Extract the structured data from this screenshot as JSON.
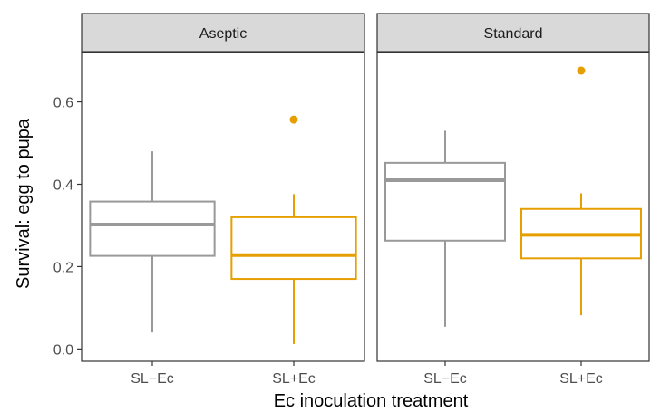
{
  "chart_data": {
    "type": "boxplot",
    "facet_label": [],
    "xlabel": "Ec inoculation treatment",
    "ylabel": "Survival: egg to pupa",
    "ylim": [
      -0.03,
      0.72
    ],
    "yticks": [
      0.0,
      0.2,
      0.4,
      0.6
    ],
    "ytick_labels": [
      "0.0",
      "0.2",
      "0.4",
      "0.6"
    ],
    "categories": [
      "SL−Ec",
      "SL+Ec"
    ],
    "category_colors": [
      "#999999",
      "#E69F00"
    ],
    "panels": [
      {
        "title": "Aseptic",
        "boxes": [
          {
            "category": "SL−Ec",
            "min": 0.04,
            "q1": 0.226,
            "median": 0.302,
            "q3": 0.358,
            "max": 0.48,
            "outliers": []
          },
          {
            "category": "SL+Ec",
            "min": 0.012,
            "q1": 0.17,
            "median": 0.228,
            "q3": 0.32,
            "max": 0.376,
            "outliers": [
              0.557
            ]
          }
        ]
      },
      {
        "title": "Standard",
        "boxes": [
          {
            "category": "SL−Ec",
            "min": 0.054,
            "q1": 0.263,
            "median": 0.41,
            "q3": 0.452,
            "max": 0.53,
            "outliers": []
          },
          {
            "category": "SL+Ec",
            "min": 0.082,
            "q1": 0.22,
            "median": 0.277,
            "q3": 0.34,
            "max": 0.378,
            "outliers": [
              0.676
            ]
          }
        ]
      }
    ],
    "grid": false,
    "legend": "none"
  }
}
